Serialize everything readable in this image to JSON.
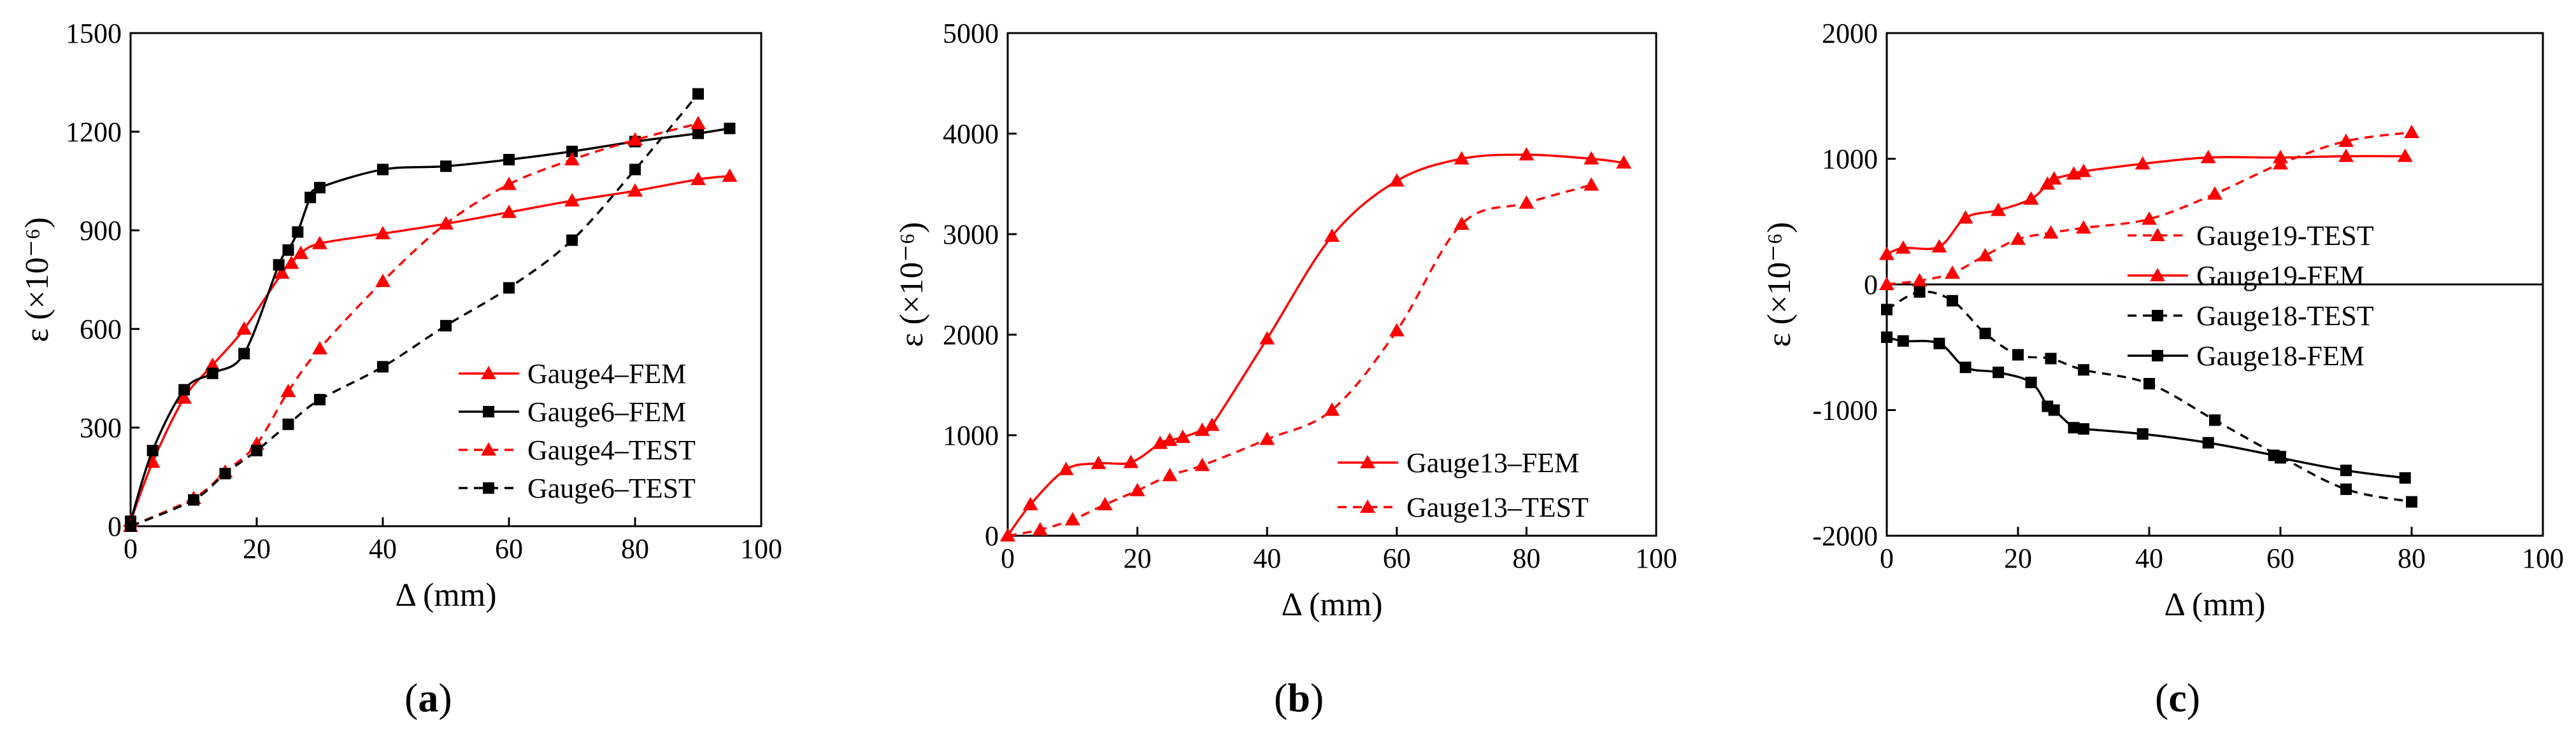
{
  "figure": {
    "panel_labels": [
      "(a)",
      "(b)",
      "(c)"
    ]
  },
  "chart_data": [
    {
      "type": "line",
      "panel": "a",
      "label": "(a)",
      "xlabel": "Δ (mm)",
      "ylabel": "ε (×10⁻⁶)",
      "xlim": [
        0,
        100
      ],
      "ylim": [
        0,
        1500
      ],
      "xticks": [
        0,
        20,
        40,
        60,
        80,
        100
      ],
      "yticks": [
        0,
        300,
        600,
        900,
        1200,
        1500
      ],
      "legend_position": "lower-right",
      "series": [
        {
          "name": "Gauge4–FEM",
          "color": "#ff0000",
          "dashed": false,
          "marker": "triangle",
          "x": [
            0,
            3.5,
            8.5,
            13,
            18,
            24,
            25.5,
            27,
            30,
            40,
            50,
            60,
            70,
            80,
            90,
            95
          ],
          "y": [
            15,
            195,
            390,
            490,
            600,
            770,
            800,
            830,
            860,
            890,
            920,
            955,
            990,
            1020,
            1055,
            1065
          ]
        },
        {
          "name": "Gauge6–FEM",
          "color": "#000000",
          "dashed": false,
          "marker": "square",
          "x": [
            0,
            3.5,
            8.5,
            13,
            18,
            23.5,
            25,
            26.5,
            28.5,
            30,
            40,
            50,
            60,
            70,
            80,
            90,
            95
          ],
          "y": [
            15,
            230,
            415,
            465,
            525,
            795,
            840,
            895,
            1000,
            1030,
            1085,
            1095,
            1115,
            1140,
            1170,
            1195,
            1210
          ]
        },
        {
          "name": "Gauge4–TEST",
          "color": "#ff0000",
          "dashed": true,
          "marker": "triangle",
          "x": [
            0,
            10,
            15,
            20,
            25,
            30,
            40,
            50,
            60,
            70,
            80,
            90
          ],
          "y": [
            0,
            85,
            165,
            250,
            410,
            540,
            745,
            920,
            1040,
            1115,
            1175,
            1225
          ]
        },
        {
          "name": "Gauge6–TEST",
          "color": "#000000",
          "dashed": true,
          "marker": "square",
          "x": [
            0,
            10,
            15,
            20,
            25,
            30,
            40,
            50,
            60,
            70,
            80,
            90
          ],
          "y": [
            0,
            80,
            160,
            230,
            310,
            385,
            485,
            610,
            725,
            870,
            1085,
            1315
          ]
        }
      ]
    },
    {
      "type": "line",
      "panel": "b",
      "label": "(b)",
      "xlabel": "Δ (mm)",
      "ylabel": "ε (×10⁻⁶)",
      "xlim": [
        0,
        100
      ],
      "ylim": [
        0,
        5000
      ],
      "xticks": [
        0,
        20,
        40,
        60,
        80,
        100
      ],
      "yticks": [
        0,
        1000,
        2000,
        3000,
        4000,
        5000
      ],
      "legend_position": "lower-right",
      "series": [
        {
          "name": "Gauge13–FEM",
          "color": "#ff0000",
          "dashed": false,
          "marker": "triangle",
          "x": [
            0,
            3.5,
            9,
            14,
            19,
            23.5,
            25,
            27,
            30,
            31.5,
            40,
            50,
            60,
            70,
            80,
            90,
            95
          ],
          "y": [
            0,
            310,
            660,
            720,
            730,
            920,
            950,
            980,
            1050,
            1100,
            1960,
            2980,
            3530,
            3750,
            3790,
            3750,
            3710
          ]
        },
        {
          "name": "Gauge13–TEST",
          "color": "#ff0000",
          "dashed": true,
          "marker": "triangle",
          "x": [
            0,
            5,
            10,
            15,
            20,
            25,
            30,
            40,
            50,
            60,
            70,
            80,
            90
          ],
          "y": [
            0,
            60,
            160,
            310,
            450,
            600,
            700,
            960,
            1250,
            2040,
            3100,
            3310,
            3490
          ]
        }
      ]
    },
    {
      "type": "line",
      "panel": "c",
      "label": "(c)",
      "xlabel": "Δ (mm)",
      "ylabel": "ε (×10⁻⁶)",
      "xlim": [
        0,
        100
      ],
      "ylim": [
        -2000,
        2000
      ],
      "xticks": [
        0,
        20,
        40,
        60,
        80,
        100
      ],
      "yticks": [
        -2000,
        -1000,
        0,
        1000,
        2000
      ],
      "zero_line": true,
      "legend_position": "right",
      "series": [
        {
          "name": "Gauge19-TEST",
          "color": "#ff0000",
          "dashed": true,
          "marker": "triangle",
          "x": [
            0,
            5,
            10,
            15,
            20,
            25,
            30,
            40,
            50,
            60,
            70,
            80
          ],
          "y": [
            0,
            30,
            90,
            230,
            360,
            410,
            450,
            520,
            720,
            960,
            1140,
            1210
          ]
        },
        {
          "name": "Gauge19-FEM",
          "color": "#ff0000",
          "dashed": false,
          "marker": "triangle",
          "x": [
            0,
            2.5,
            8,
            12,
            17,
            22,
            24.5,
            25.5,
            28.5,
            30,
            39,
            49,
            60,
            70,
            79
          ],
          "y": [
            240,
            290,
            300,
            530,
            590,
            680,
            800,
            840,
            880,
            900,
            960,
            1010,
            1010,
            1020,
            1020
          ]
        },
        {
          "name": "Gauge18-TEST",
          "color": "#000000",
          "dashed": true,
          "marker": "square",
          "x": [
            0,
            5,
            10,
            15,
            20,
            25,
            30,
            40,
            50,
            60,
            70,
            80
          ],
          "y": [
            -200,
            -60,
            -130,
            -390,
            -560,
            -590,
            -680,
            -790,
            -1080,
            -1370,
            -1630,
            -1730
          ]
        },
        {
          "name": "Gauge18-FEM",
          "color": "#000000",
          "dashed": false,
          "marker": "square",
          "x": [
            0,
            2.5,
            8,
            12,
            17,
            22,
            24.5,
            25.5,
            28.5,
            30,
            39,
            49,
            59,
            60,
            70,
            79
          ],
          "y": [
            -420,
            -450,
            -470,
            -660,
            -700,
            -780,
            -970,
            -1000,
            -1140,
            -1150,
            -1190,
            -1260,
            -1360,
            -1380,
            -1480,
            -1540
          ]
        }
      ]
    }
  ]
}
